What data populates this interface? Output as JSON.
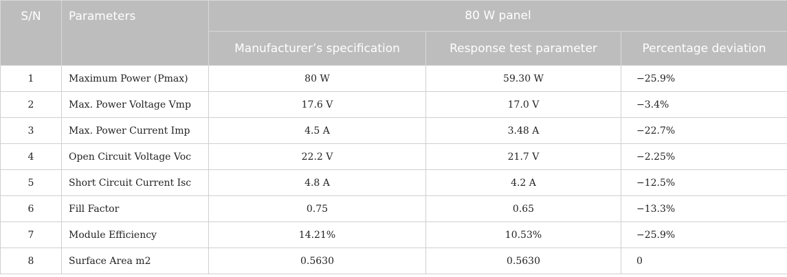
{
  "header": {
    "sn": "S/N",
    "parameters": "Parameters",
    "group": "80 W panel",
    "manufacturer": "Manufacturer’s specification",
    "response": "Response test parameter",
    "deviation": "Percentage deviation"
  },
  "rows": [
    {
      "sn": "1",
      "parameter": "Maximum Power (Pmax)",
      "manufacturer": "80 W",
      "response": "59.30 W",
      "deviation": "−25.9%"
    },
    {
      "sn": "2",
      "parameter": "Max. Power Voltage Vmp",
      "manufacturer": "17.6 V",
      "response": "17.0 V",
      "deviation": "−3.4%"
    },
    {
      "sn": "3",
      "parameter": "Max. Power Current Imp",
      "manufacturer": "4.5 A",
      "response": "3.48 A",
      "deviation": "−22.7%"
    },
    {
      "sn": "4",
      "parameter": "Open Circuit Voltage Voc",
      "manufacturer": "22.2 V",
      "response": "21.7 V",
      "deviation": "−2.25%"
    },
    {
      "sn": "5",
      "parameter": "Short Circuit Current Isc",
      "manufacturer": "4.8 A",
      "response": "4.2 A",
      "deviation": "−12.5%"
    },
    {
      "sn": "6",
      "parameter": "Fill Factor",
      "manufacturer": "0.75",
      "response": "0.65",
      "deviation": "−13.3%"
    },
    {
      "sn": "7",
      "parameter": "Module Efficiency",
      "manufacturer": "14.21%",
      "response": "10.53%",
      "deviation": "−25.9%"
    },
    {
      "sn": "8",
      "parameter": "Surface Area m2",
      "manufacturer": "0.5630",
      "response": "0.5630",
      "deviation": "0"
    }
  ]
}
